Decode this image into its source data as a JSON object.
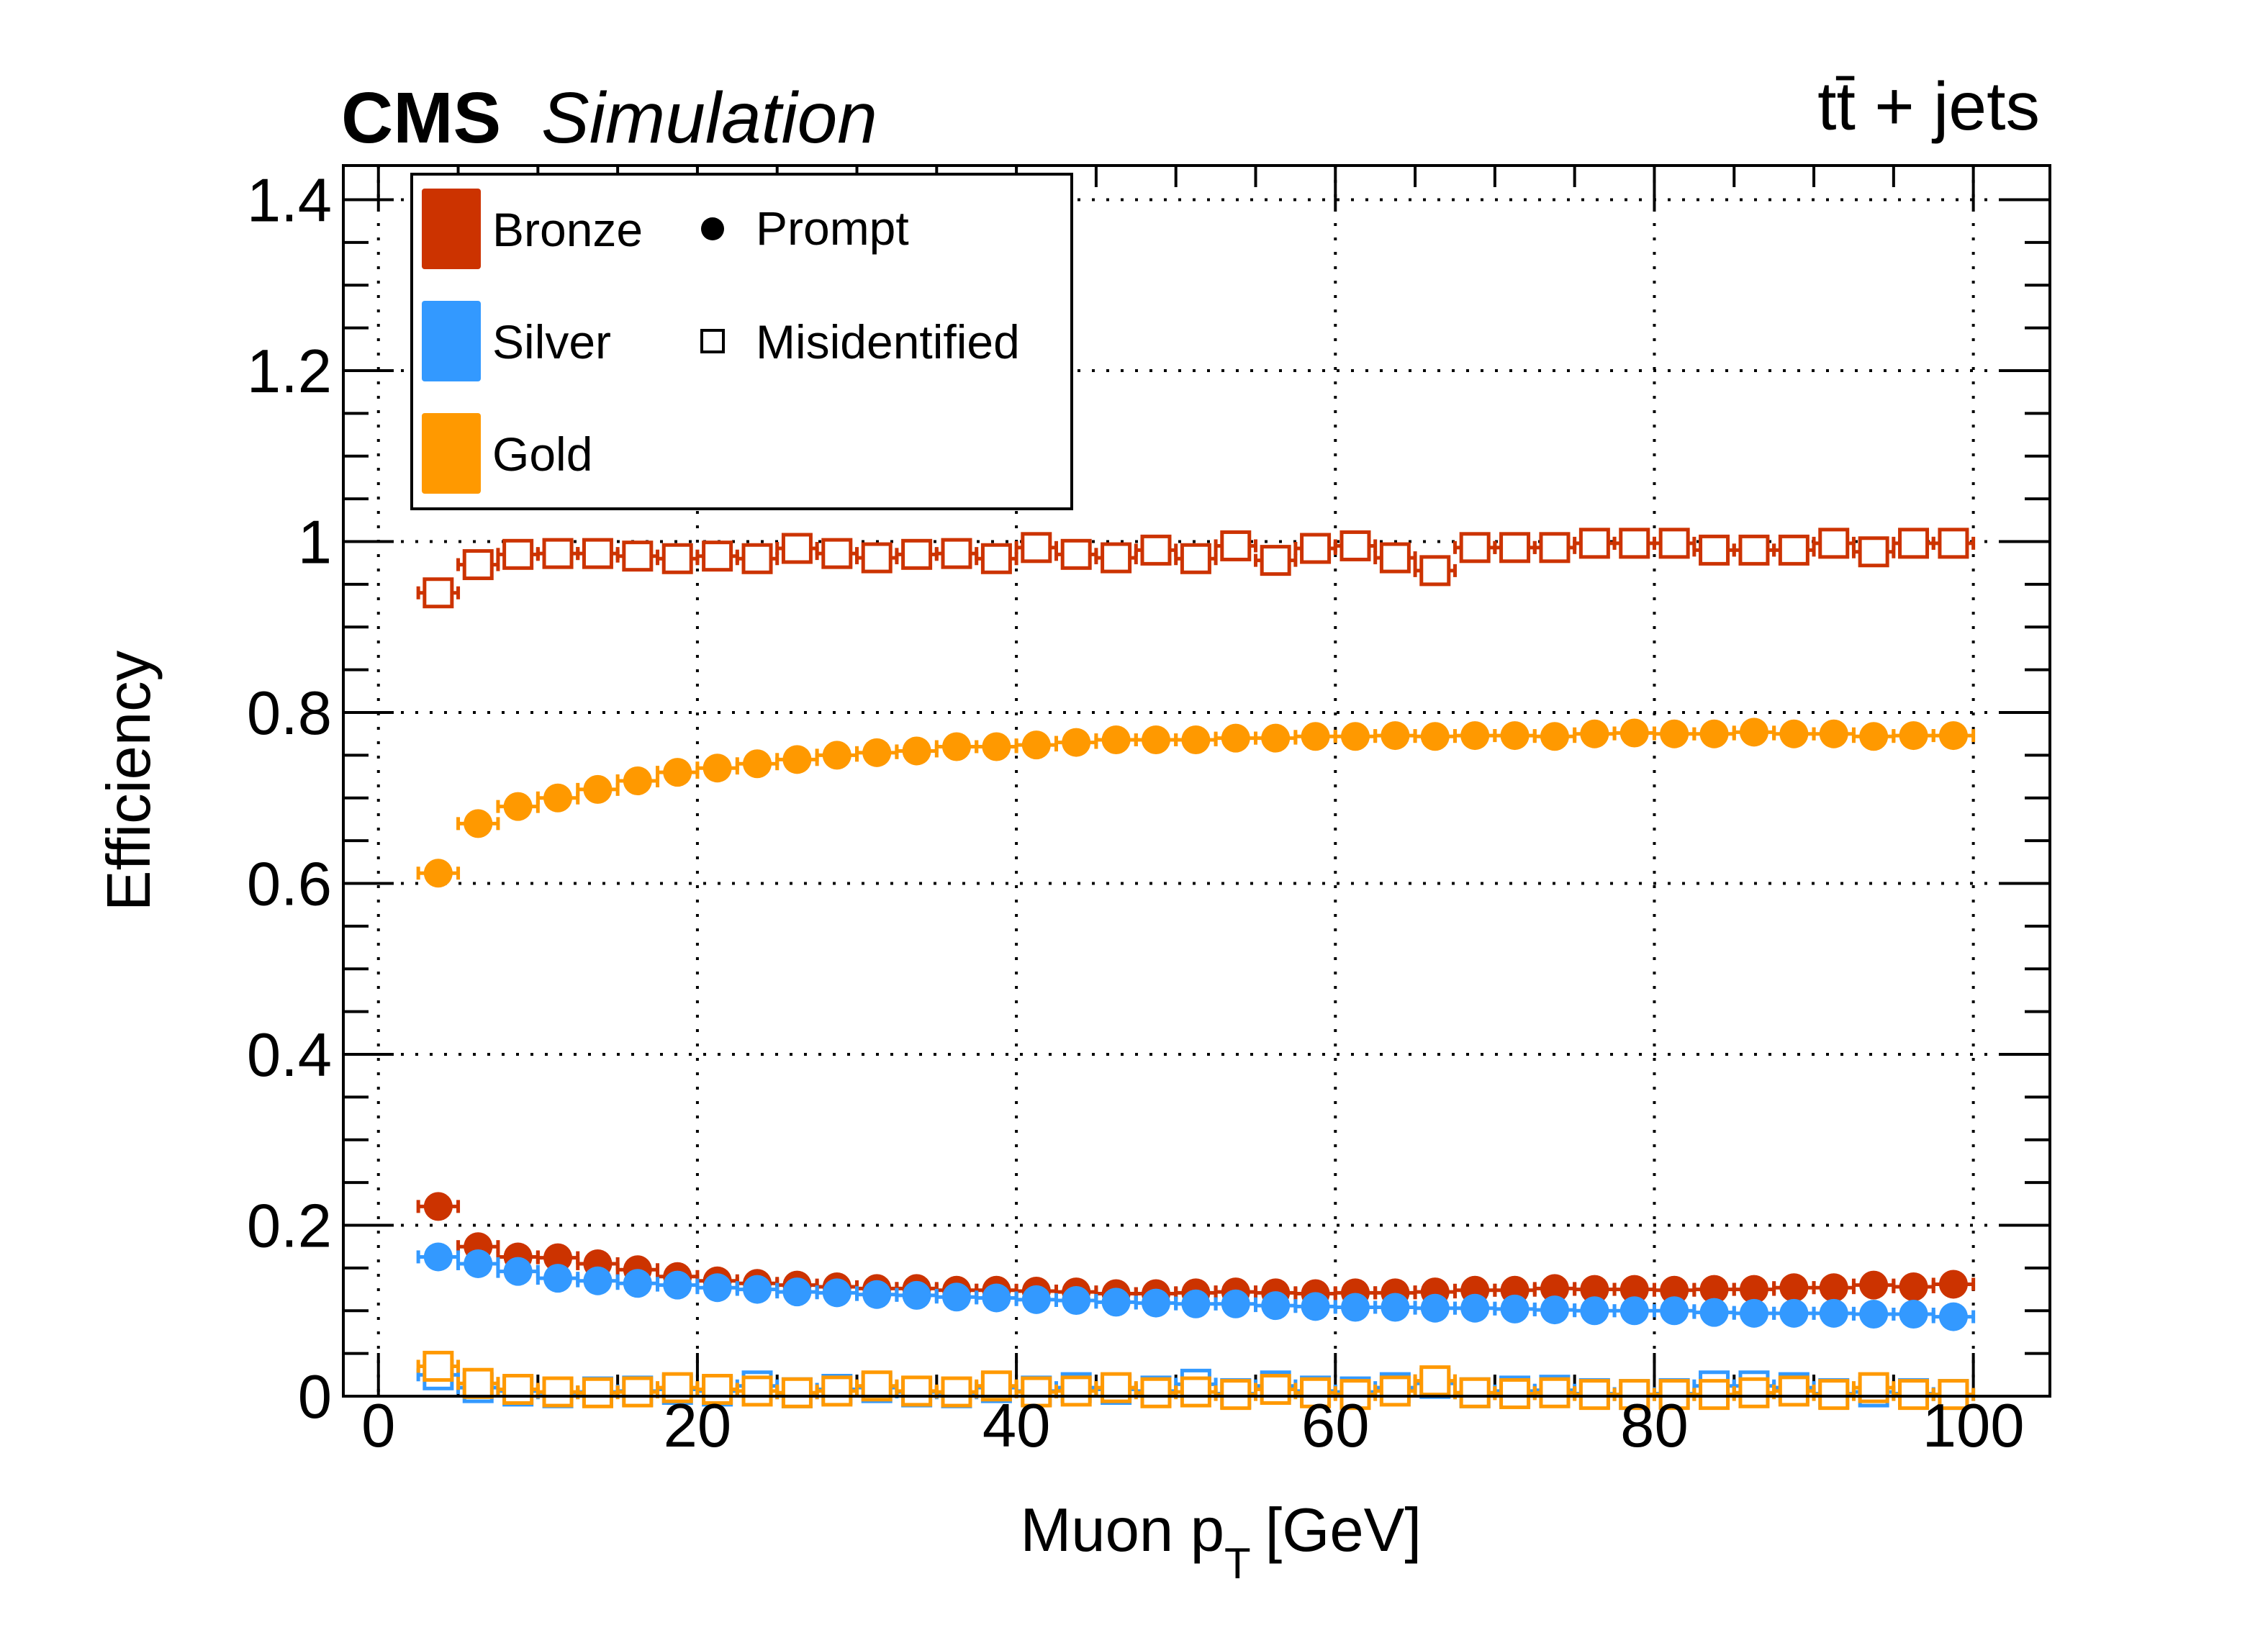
{
  "header": {
    "experiment": "CMS",
    "status": "Simulation",
    "process": "tt̄ + jets"
  },
  "chart_data": {
    "type": "scatter",
    "xlabel": "Muon p",
    "xlabel_sub": "T",
    "xlabel_unit": "[GeV]",
    "ylabel": "Efficiency",
    "xlim": [
      -2.2,
      104.8
    ],
    "ylim": [
      0,
      1.44
    ],
    "xticks": [
      0,
      20,
      40,
      60,
      80,
      100
    ],
    "xtick_labels": [
      "0",
      "20",
      "40",
      "60",
      "80",
      "100"
    ],
    "yticks": [
      0,
      0.2,
      0.4,
      0.6,
      0.8,
      1,
      1.2,
      1.4
    ],
    "ytick_labels": [
      "0",
      "0.2",
      "0.4",
      "0.6",
      "0.8",
      "1",
      "1.2",
      "1.4"
    ],
    "grid": true,
    "legend_placement": "top-left",
    "legend": {
      "colors": [
        {
          "label": "Bronze",
          "color": "#cc3300"
        },
        {
          "label": "Silver",
          "color": "#3399ff"
        },
        {
          "label": "Gold",
          "color": "#ff9900"
        }
      ],
      "markers": [
        {
          "label": "Prompt",
          "marker": "filled-circle"
        },
        {
          "label": "Misidentified",
          "marker": "open-square"
        }
      ]
    },
    "x": [
      3.75,
      6.25,
      8.75,
      11.25,
      13.75,
      16.25,
      18.75,
      21.25,
      23.75,
      26.25,
      28.75,
      31.25,
      33.75,
      36.25,
      38.75,
      41.25,
      43.75,
      46.25,
      48.75,
      51.25,
      53.75,
      56.25,
      58.75,
      61.25,
      63.75,
      66.25,
      68.75,
      71.25,
      73.75,
      76.25,
      78.75,
      81.25,
      83.75,
      86.25,
      88.75,
      91.25,
      93.75,
      96.25,
      98.75
    ],
    "x_error": 1.25,
    "series": [
      {
        "category": "Bronze",
        "type": "Misidentified",
        "color": "#cc3300",
        "marker": "open-square",
        "values": [
          0.94,
          0.973,
          0.985,
          0.986,
          0.986,
          0.983,
          0.98,
          0.983,
          0.98,
          0.992,
          0.986,
          0.981,
          0.985,
          0.986,
          0.98,
          0.993,
          0.985,
          0.981,
          0.99,
          0.98,
          0.995,
          0.978,
          0.992,
          0.995,
          0.981,
          0.966,
          0.993,
          0.993,
          0.993,
          0.998,
          0.998,
          0.998,
          0.99,
          0.99,
          0.99,
          0.998,
          0.988,
          0.998,
          0.998
        ]
      },
      {
        "category": "Gold",
        "type": "Prompt",
        "color": "#ff9900",
        "marker": "filled-circle",
        "values": [
          0.612,
          0.67,
          0.69,
          0.7,
          0.71,
          0.72,
          0.73,
          0.735,
          0.74,
          0.745,
          0.75,
          0.753,
          0.755,
          0.76,
          0.76,
          0.762,
          0.765,
          0.768,
          0.768,
          0.768,
          0.77,
          0.77,
          0.772,
          0.772,
          0.773,
          0.772,
          0.773,
          0.773,
          0.772,
          0.775,
          0.776,
          0.775,
          0.775,
          0.777,
          0.775,
          0.775,
          0.772,
          0.773,
          0.773
        ]
      },
      {
        "category": "Bronze",
        "type": "Prompt",
        "color": "#cc3300",
        "marker": "filled-circle",
        "values": [
          0.222,
          0.175,
          0.163,
          0.162,
          0.155,
          0.148,
          0.14,
          0.135,
          0.132,
          0.13,
          0.128,
          0.126,
          0.126,
          0.124,
          0.124,
          0.123,
          0.122,
          0.12,
          0.12,
          0.121,
          0.122,
          0.121,
          0.12,
          0.121,
          0.121,
          0.122,
          0.124,
          0.124,
          0.126,
          0.125,
          0.125,
          0.124,
          0.125,
          0.125,
          0.127,
          0.127,
          0.13,
          0.128,
          0.131
        ]
      },
      {
        "category": "Silver",
        "type": "Prompt",
        "color": "#3399ff",
        "marker": "filled-circle",
        "values": [
          0.163,
          0.155,
          0.146,
          0.138,
          0.135,
          0.132,
          0.13,
          0.127,
          0.125,
          0.122,
          0.121,
          0.119,
          0.118,
          0.116,
          0.115,
          0.113,
          0.112,
          0.11,
          0.109,
          0.108,
          0.108,
          0.106,
          0.105,
          0.104,
          0.104,
          0.103,
          0.103,
          0.102,
          0.101,
          0.1,
          0.1,
          0.1,
          0.098,
          0.097,
          0.097,
          0.097,
          0.096,
          0.096,
          0.093
        ]
      },
      {
        "category": "Silver",
        "type": "Misidentified",
        "color": "#3399ff",
        "marker": "open-square",
        "values": [
          0.025,
          0.01,
          0.006,
          0.004,
          0.005,
          0.006,
          0.008,
          0.006,
          0.012,
          0.004,
          0.008,
          0.01,
          0.005,
          0.004,
          0.01,
          0.006,
          0.01,
          0.008,
          0.006,
          0.014,
          0.003,
          0.012,
          0.006,
          0.005,
          0.01,
          0.015,
          0.004,
          0.006,
          0.007,
          0.003,
          0.002,
          0.003,
          0.012,
          0.012,
          0.01,
          0.003,
          0.005,
          0.003,
          0.002
        ]
      },
      {
        "category": "Gold",
        "type": "Misidentified",
        "color": "#ff9900",
        "marker": "open-square",
        "values": [
          0.035,
          0.015,
          0.008,
          0.005,
          0.004,
          0.005,
          0.01,
          0.008,
          0.006,
          0.004,
          0.006,
          0.012,
          0.006,
          0.005,
          0.012,
          0.005,
          0.006,
          0.01,
          0.004,
          0.005,
          0.002,
          0.008,
          0.004,
          0.002,
          0.006,
          0.018,
          0.004,
          0.003,
          0.004,
          0.002,
          0.002,
          0.002,
          0.002,
          0.004,
          0.006,
          0.002,
          0.01,
          0.002,
          0.002
        ]
      }
    ]
  }
}
